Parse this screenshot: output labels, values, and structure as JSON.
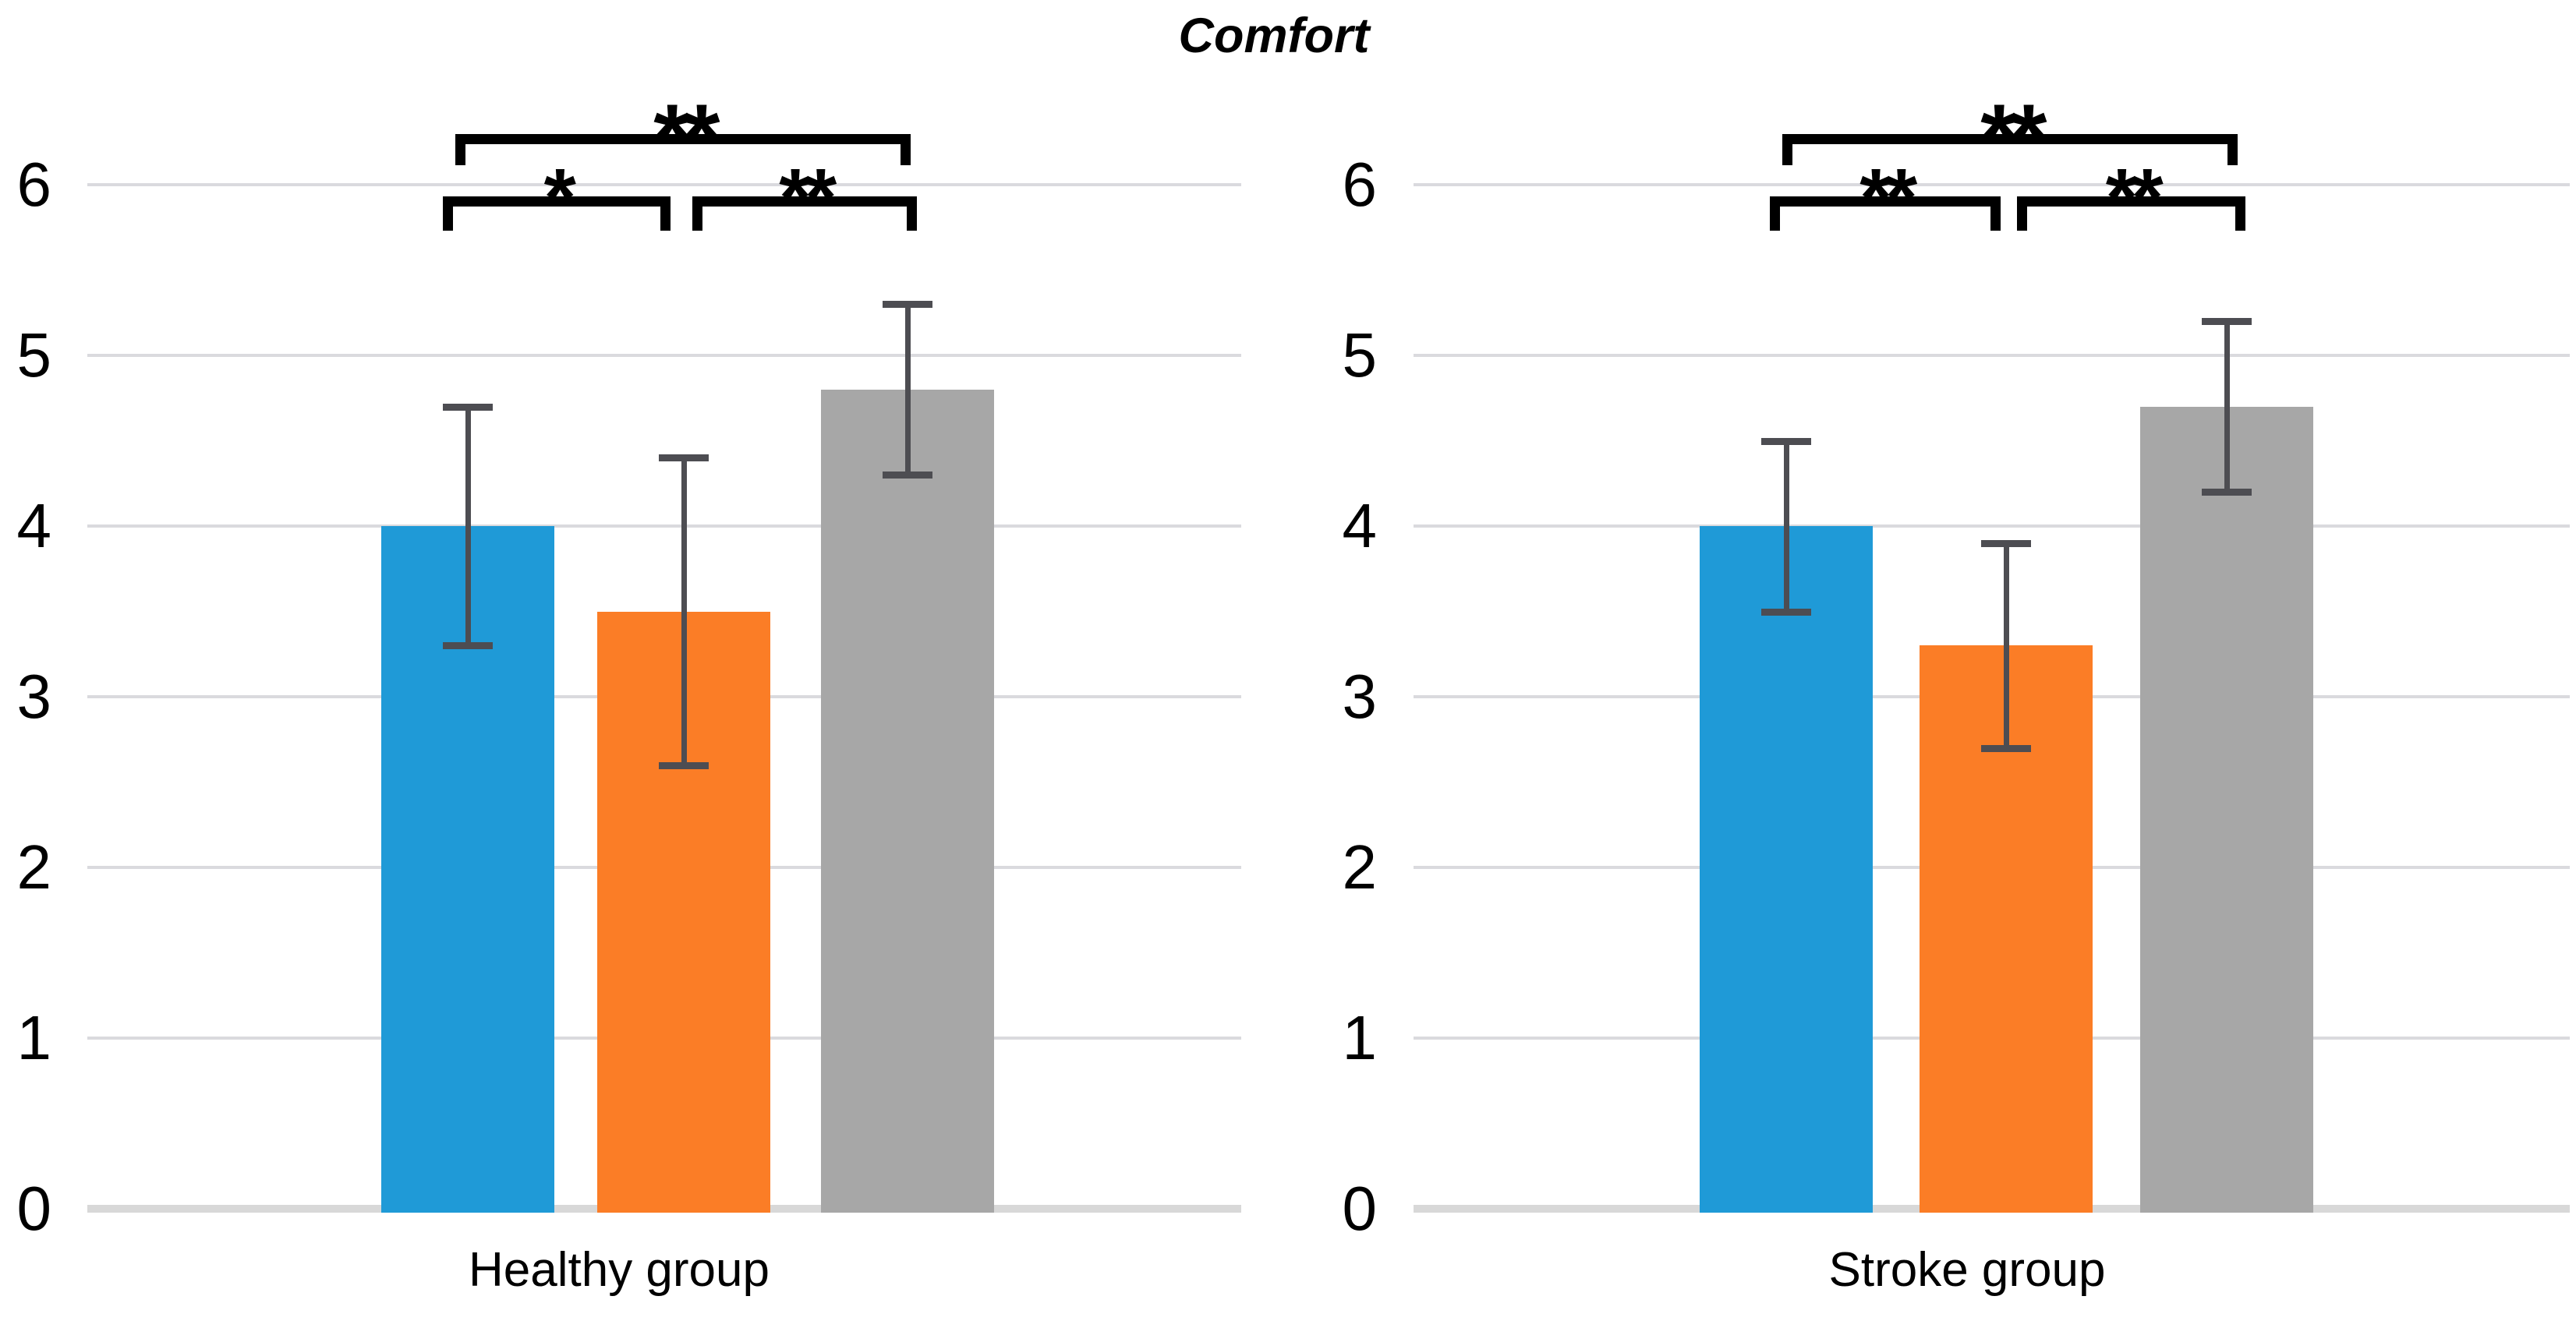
{
  "title": "Comfort",
  "colors": {
    "blue": "#1F9AD7",
    "orange": "#FB7D26",
    "gray": "#A7A7A7",
    "error_bar": "#4D4D52",
    "gridline": "#DADADE",
    "baseline": "#D8D8D8",
    "significance": "#000000",
    "text": "#000000"
  },
  "chart_data": {
    "type": "bar",
    "title": "Comfort",
    "ylabel": "",
    "xlabel": "",
    "ylim": [
      0,
      6
    ],
    "yticks": [
      0,
      1,
      2,
      3,
      4,
      5,
      6
    ],
    "grid": true,
    "legend": "none",
    "error_bars": true,
    "panels": [
      {
        "group_label": "Healthy group",
        "bars": [
          {
            "color_key": "blue",
            "value": 4.0,
            "error_low": 3.3,
            "error_high": 4.7
          },
          {
            "color_key": "orange",
            "value": 3.5,
            "error_low": 2.6,
            "error_high": 4.4
          },
          {
            "color_key": "gray",
            "value": 4.8,
            "error_low": 4.3,
            "error_high": 5.3
          }
        ],
        "significance": [
          {
            "between": [
              1,
              2
            ],
            "label": "*",
            "level": "low"
          },
          {
            "between": [
              2,
              3
            ],
            "label": "**",
            "level": "low"
          },
          {
            "between": [
              1,
              3
            ],
            "label": "**",
            "level": "high"
          }
        ]
      },
      {
        "group_label": "Stroke group",
        "bars": [
          {
            "color_key": "blue",
            "value": 4.0,
            "error_low": 3.5,
            "error_high": 4.5
          },
          {
            "color_key": "orange",
            "value": 3.3,
            "error_low": 2.7,
            "error_high": 3.9
          },
          {
            "color_key": "gray",
            "value": 4.7,
            "error_low": 4.2,
            "error_high": 5.2
          }
        ],
        "significance": [
          {
            "between": [
              1,
              2
            ],
            "label": "**",
            "level": "low"
          },
          {
            "between": [
              2,
              3
            ],
            "label": "**",
            "level": "low"
          },
          {
            "between": [
              1,
              3
            ],
            "label": "**",
            "level": "high"
          }
        ]
      }
    ]
  }
}
